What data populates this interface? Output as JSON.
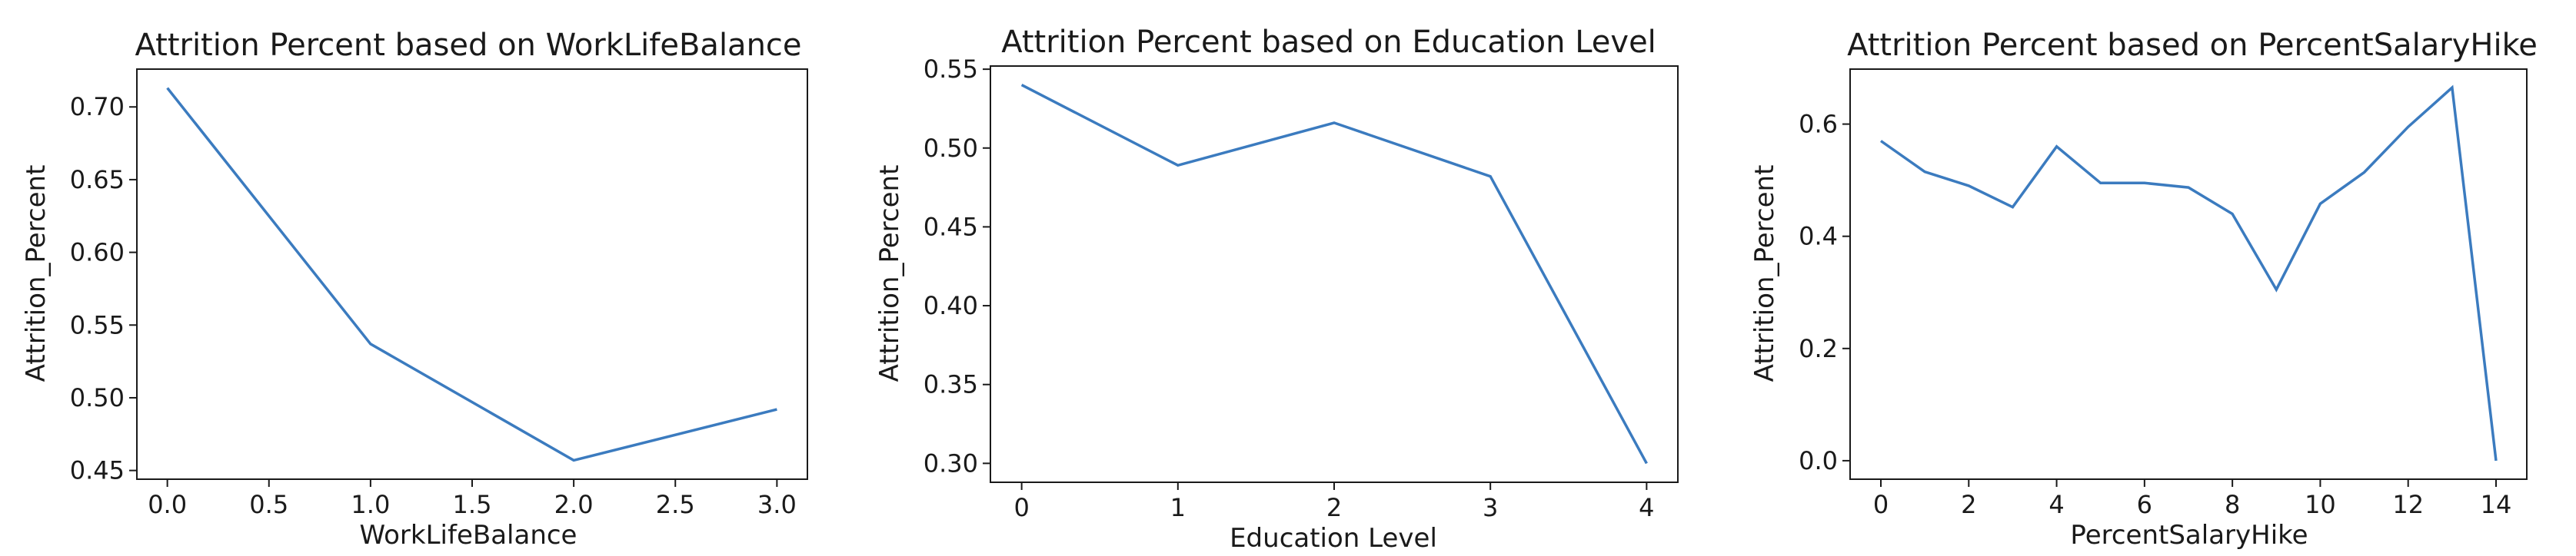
{
  "chart_data": [
    {
      "type": "line",
      "title": "Attrition Percent based on WorkLifeBalance",
      "xlabel": "WorkLifeBalance",
      "ylabel": "Attrition_Percent",
      "x": [
        0,
        1,
        2,
        3
      ],
      "values": [
        0.713,
        0.537,
        0.457,
        0.492
      ],
      "xlim": [
        -0.15,
        3.15
      ],
      "ylim": [
        0.444,
        0.726
      ],
      "xticks": [
        0.0,
        0.5,
        1.0,
        1.5,
        2.0,
        2.5,
        3.0
      ],
      "xtick_labels": [
        "0.0",
        "0.5",
        "1.0",
        "1.5",
        "2.0",
        "2.5",
        "3.0"
      ],
      "yticks": [
        0.45,
        0.5,
        0.55,
        0.6,
        0.65,
        0.7
      ],
      "ytick_labels": [
        "0.45",
        "0.50",
        "0.55",
        "0.60",
        "0.65",
        "0.70"
      ],
      "grid": false,
      "color": "#3b7bbf"
    },
    {
      "type": "line",
      "title": "Attrition Percent based on Education Level",
      "xlabel": "Education Level",
      "ylabel": "Attrition_Percent",
      "x": [
        0,
        1,
        2,
        3,
        4
      ],
      "values": [
        0.54,
        0.489,
        0.516,
        0.482,
        0.3
      ],
      "xlim": [
        -0.2,
        4.2
      ],
      "ylim": [
        0.288,
        0.552
      ],
      "xticks": [
        0,
        1,
        2,
        3,
        4
      ],
      "xtick_labels": [
        "0",
        "1",
        "2",
        "3",
        "4"
      ],
      "yticks": [
        0.3,
        0.35,
        0.4,
        0.45,
        0.5,
        0.55
      ],
      "ytick_labels": [
        "0.30",
        "0.35",
        "0.40",
        "0.45",
        "0.50",
        "0.55"
      ],
      "grid": false,
      "color": "#3b7bbf"
    },
    {
      "type": "line",
      "title": "Attrition Percent based on PercentSalaryHike",
      "xlabel": "PercentSalaryHike",
      "ylabel": "Attrition_Percent",
      "x": [
        0,
        1,
        2,
        3,
        4,
        5,
        6,
        7,
        8,
        9,
        10,
        11,
        12,
        13,
        14
      ],
      "values": [
        0.57,
        0.515,
        0.49,
        0.452,
        0.56,
        0.495,
        0.495,
        0.487,
        0.44,
        0.305,
        0.458,
        0.514,
        0.595,
        0.665,
        0.0
      ],
      "xlim": [
        -0.7,
        14.7
      ],
      "ylim": [
        -0.033,
        0.698
      ],
      "xticks": [
        0,
        2,
        4,
        6,
        8,
        10,
        12,
        14
      ],
      "xtick_labels": [
        "0",
        "2",
        "4",
        "6",
        "8",
        "10",
        "12",
        "14"
      ],
      "yticks": [
        0.0,
        0.2,
        0.4,
        0.6
      ],
      "ytick_labels": [
        "0.0",
        "0.2",
        "0.4",
        "0.6"
      ],
      "grid": false,
      "color": "#3b7bbf"
    }
  ]
}
